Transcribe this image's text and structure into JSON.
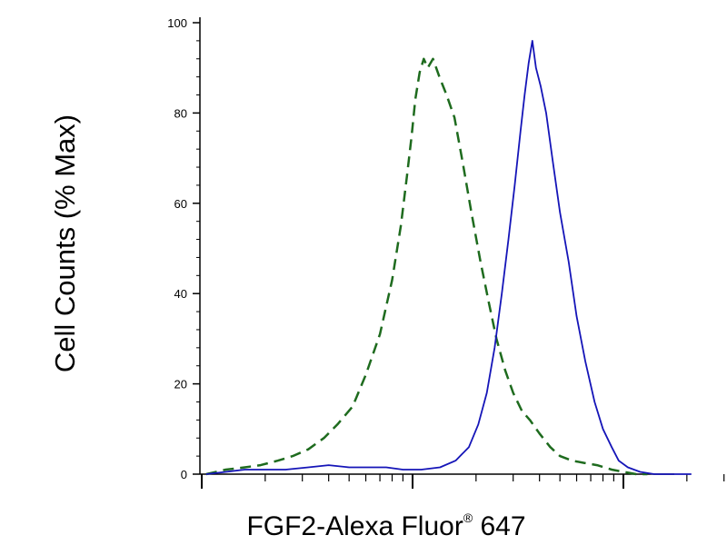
{
  "chart_data": {
    "type": "line",
    "ylabel": "Cell Counts (% Max)",
    "xlabel_main": "FGF2-Alexa Fluor",
    "xlabel_mark": "®",
    "xlabel_tail": "647",
    "xscale": "log",
    "xlim": [
      1,
      1000
    ],
    "ylim": [
      0,
      100
    ],
    "yticks": [
      "0",
      "20",
      "40",
      "60",
      "80",
      "100"
    ],
    "grid": false,
    "series": [
      {
        "style": "dashed",
        "color": "#1e6b1e",
        "x": [
          1.05,
          1.3,
          1.6,
          1.9,
          2.3,
          2.7,
          3.2,
          3.8,
          4.4,
          5.2,
          6.0,
          7.0,
          8.0,
          8.8,
          9.4,
          9.9,
          10.3,
          10.8,
          11.3,
          11.8,
          12.5,
          13.4,
          14.5,
          15.8,
          17.3,
          19.0,
          21,
          23,
          25,
          27.5,
          30,
          33,
          36,
          40,
          45,
          50,
          57,
          65,
          75,
          88,
          100,
          115,
          130
        ],
        "y": [
          0,
          1,
          1.5,
          2,
          3,
          4,
          5.5,
          8,
          11,
          15,
          22,
          31,
          43,
          55,
          66,
          75,
          83,
          89,
          92,
          90,
          92,
          88,
          84,
          79,
          69,
          58,
          47,
          38,
          30,
          23,
          18,
          14,
          12,
          9,
          6,
          4,
          3,
          2.5,
          2,
          1,
          0.5,
          0,
          0
        ]
      },
      {
        "style": "solid",
        "color": "#1515b8",
        "x": [
          1.05,
          1.3,
          1.6,
          2.0,
          2.5,
          3.2,
          4.0,
          5.0,
          6.2,
          7.5,
          9.0,
          11.0,
          13.5,
          16.0,
          18.5,
          20.5,
          22.5,
          24.5,
          26.5,
          28.5,
          30.5,
          32.5,
          34.0,
          35.5,
          37.0,
          38.5,
          40.5,
          43,
          46,
          50,
          55,
          60,
          66,
          73,
          80,
          88,
          95,
          105,
          120,
          140,
          170,
          210
        ],
        "y": [
          0,
          0.5,
          1,
          1,
          1,
          1.5,
          2,
          1.5,
          1.5,
          1.5,
          1,
          1,
          1.5,
          3,
          6,
          11,
          18,
          28,
          40,
          52,
          64,
          76,
          84,
          91,
          96,
          90,
          86,
          80,
          70,
          58,
          47,
          35,
          25,
          16,
          10,
          6,
          3,
          1.5,
          0.5,
          0,
          0,
          0
        ]
      }
    ]
  }
}
